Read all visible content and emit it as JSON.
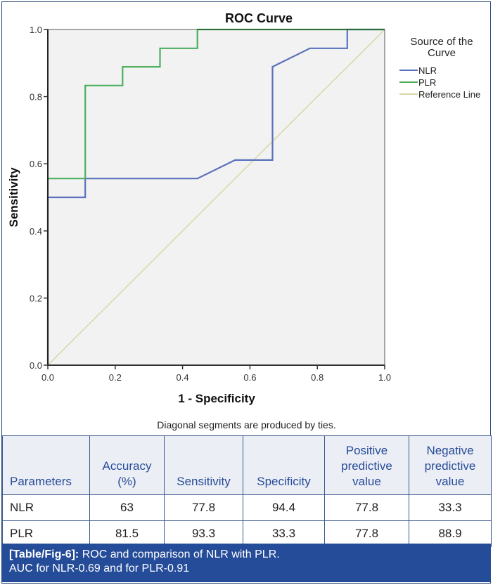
{
  "chart_data": {
    "type": "line",
    "title": "ROC Curve",
    "xlabel": "1 - Specificity",
    "ylabel": "Sensitivity",
    "xlim": [
      0,
      1
    ],
    "ylim": [
      0,
      1
    ],
    "xticks": [
      "0.0",
      "0.2",
      "0.4",
      "0.6",
      "0.8",
      "1.0"
    ],
    "yticks": [
      "0.0",
      "0.2",
      "0.4",
      "0.6",
      "0.8",
      "1.0"
    ],
    "grid": false,
    "legend": {
      "title": "Source of the Curve",
      "placement": "right",
      "entries": [
        "NLR",
        "PLR",
        "Reference Line"
      ]
    },
    "footnote": "Diagonal segments are produced by ties.",
    "series": [
      {
        "name": "NLR",
        "color": "#5a72bd",
        "points": [
          [
            0,
            0
          ],
          [
            0,
            0.5
          ],
          [
            0.111,
            0.5
          ],
          [
            0.111,
            0.556
          ],
          [
            0.444,
            0.556
          ],
          [
            0.556,
            0.611
          ],
          [
            0.667,
            0.611
          ],
          [
            0.667,
            0.889
          ],
          [
            0.778,
            0.944
          ],
          [
            0.889,
            0.944
          ],
          [
            0.889,
            1
          ],
          [
            1,
            1
          ]
        ]
      },
      {
        "name": "PLR",
        "color": "#4caf5e",
        "points": [
          [
            0,
            0
          ],
          [
            0,
            0.556
          ],
          [
            0.111,
            0.556
          ],
          [
            0.111,
            0.833
          ],
          [
            0.222,
            0.833
          ],
          [
            0.222,
            0.889
          ],
          [
            0.333,
            0.889
          ],
          [
            0.333,
            0.944
          ],
          [
            0.444,
            0.944
          ],
          [
            0.444,
            1
          ],
          [
            1,
            1
          ]
        ]
      },
      {
        "name": "Reference Line",
        "color": "#d6d8a8",
        "points": [
          [
            0,
            0
          ],
          [
            1,
            1
          ]
        ]
      }
    ]
  },
  "table": {
    "headers": [
      [
        "Parameters"
      ],
      [
        "Accuracy",
        "(%)"
      ],
      [
        "Sensitivity"
      ],
      [
        "Specificity"
      ],
      [
        "Positive",
        "predictive",
        "value"
      ],
      [
        "Negative",
        "predictive",
        "value"
      ]
    ],
    "rows": [
      [
        "NLR",
        "63",
        "77.8",
        "94.4",
        "77.8",
        "33.3"
      ],
      [
        "PLR",
        "81.5",
        "93.3",
        "33.3",
        "77.8",
        "88.9"
      ]
    ]
  },
  "caption": {
    "label": "[Table/Fig-6]:",
    "line1": " ROC and comparison of NLR with PLR.",
    "line2": "AUC for NLR-0.69 and for PLR-0.91"
  },
  "colors": {
    "header_text": "#264c97",
    "caption_bg": "#254c99",
    "plot_bg": "#f2f2f2"
  }
}
